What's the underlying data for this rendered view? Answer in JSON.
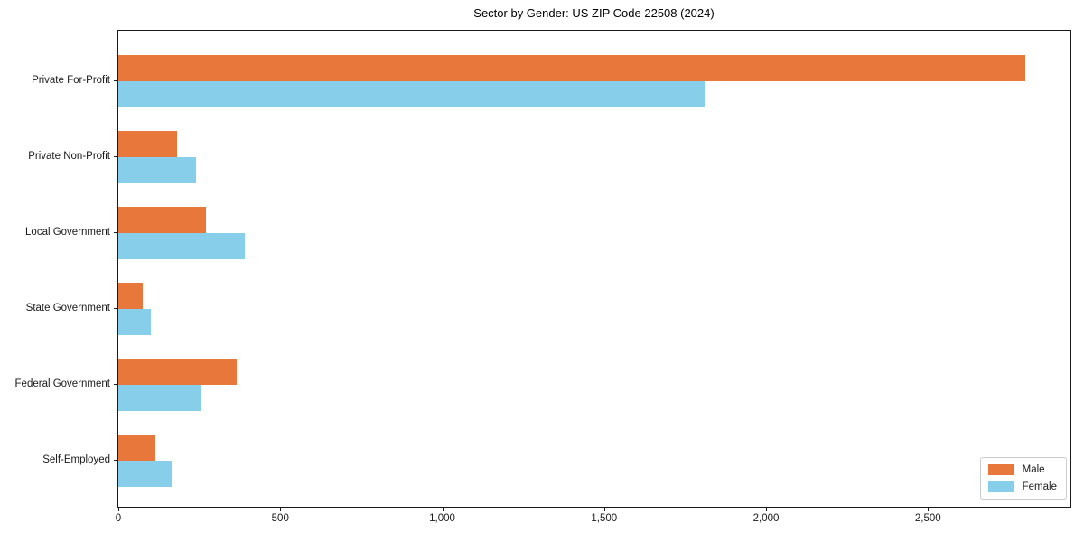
{
  "title": "Sector by Gender: US ZIP Code 22508 (2024)",
  "colors": {
    "male": "#e8773c",
    "female": "#87ceeb",
    "spine": "#1a1a1a",
    "text": "#1a1a1a",
    "legend_border": "#cccccc",
    "background": "#ffffff"
  },
  "chart_data": {
    "type": "bar",
    "orientation": "horizontal",
    "title": "Sector by Gender: US ZIP Code 22508 (2024)",
    "categories": [
      "Private For-Profit",
      "Private Non-Profit",
      "Local Government",
      "State Government",
      "Federal Government",
      "Self-Employed"
    ],
    "series": [
      {
        "name": "Male",
        "color": "#e8773c",
        "values": [
          2800,
          180,
          270,
          75,
          365,
          115
        ]
      },
      {
        "name": "Female",
        "color": "#87ceeb",
        "values": [
          1810,
          240,
          390,
          100,
          255,
          165
        ]
      }
    ],
    "xlabel": "",
    "ylabel": "",
    "xlim": [
      0,
      2940
    ],
    "xticks": [
      0,
      500,
      1000,
      1500,
      2000,
      2500
    ],
    "xtick_labels": [
      "0",
      "500",
      "1,000",
      "1,500",
      "2,000",
      "2,500"
    ],
    "grid": false,
    "legend_position": "lower right"
  },
  "legend": {
    "items": [
      {
        "label": "Male"
      },
      {
        "label": "Female"
      }
    ]
  }
}
